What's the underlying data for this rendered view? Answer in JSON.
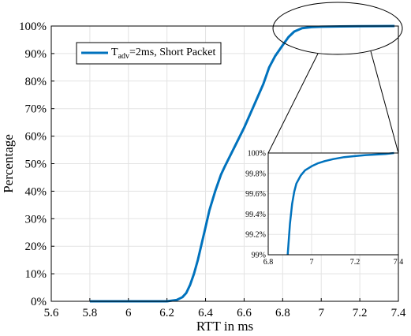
{
  "chart_data": {
    "type": "line",
    "title": "",
    "xlabel": "RTT in ms",
    "ylabel": "Percentage",
    "xlim": [
      5.6,
      7.4
    ],
    "ylim": [
      0,
      100
    ],
    "xticks": [
      "5.6",
      "5.8",
      "6",
      "6.2",
      "6.4",
      "6.6",
      "6.8",
      "7",
      "7.2",
      "7.4"
    ],
    "yticks": [
      "0%",
      "10%",
      "20%",
      "30%",
      "40%",
      "50%",
      "60%",
      "70%",
      "80%",
      "90%",
      "100%"
    ],
    "grid": true,
    "legend_position": "top-left",
    "legend": {
      "prefix": "T",
      "subscript": "adv",
      "suffix": "=2ms, Short Packet"
    },
    "series": [
      {
        "color": "#0072BD",
        "x": [
          5.8,
          6.0,
          6.2,
          6.25,
          6.28,
          6.3,
          6.32,
          6.34,
          6.36,
          6.38,
          6.4,
          6.42,
          6.45,
          6.48,
          6.5,
          6.55,
          6.6,
          6.65,
          6.7,
          6.73,
          6.76,
          6.8,
          6.83,
          6.86,
          6.9,
          6.95,
          7.0,
          7.1,
          7.2,
          7.3,
          7.38
        ],
        "y": [
          0,
          0,
          0,
          0.5,
          1.5,
          3,
          6,
          10,
          15,
          21,
          27,
          33,
          40,
          46,
          49,
          56,
          63,
          71,
          79,
          85,
          89,
          93,
          96,
          98,
          99.2,
          99.6,
          99.75,
          99.85,
          99.92,
          99.96,
          100
        ]
      }
    ],
    "inset": {
      "xlim": [
        6.8,
        7.4
      ],
      "ylim": [
        99,
        100
      ],
      "xticks": [
        "6.8",
        "7",
        "7.2",
        "7.4"
      ],
      "yticks": [
        "99%",
        "99.2%",
        "99.4%",
        "99.6%",
        "99.8%",
        "100%"
      ],
      "x": [
        6.89,
        6.9,
        6.91,
        6.92,
        6.93,
        6.95,
        6.97,
        7.0,
        7.03,
        7.06,
        7.1,
        7.15,
        7.2,
        7.25,
        7.3,
        7.34,
        7.38
      ],
      "y": [
        99.0,
        99.3,
        99.5,
        99.62,
        99.7,
        99.78,
        99.83,
        99.87,
        99.9,
        99.92,
        99.94,
        99.96,
        99.97,
        99.98,
        99.985,
        99.99,
        100.0
      ]
    }
  }
}
